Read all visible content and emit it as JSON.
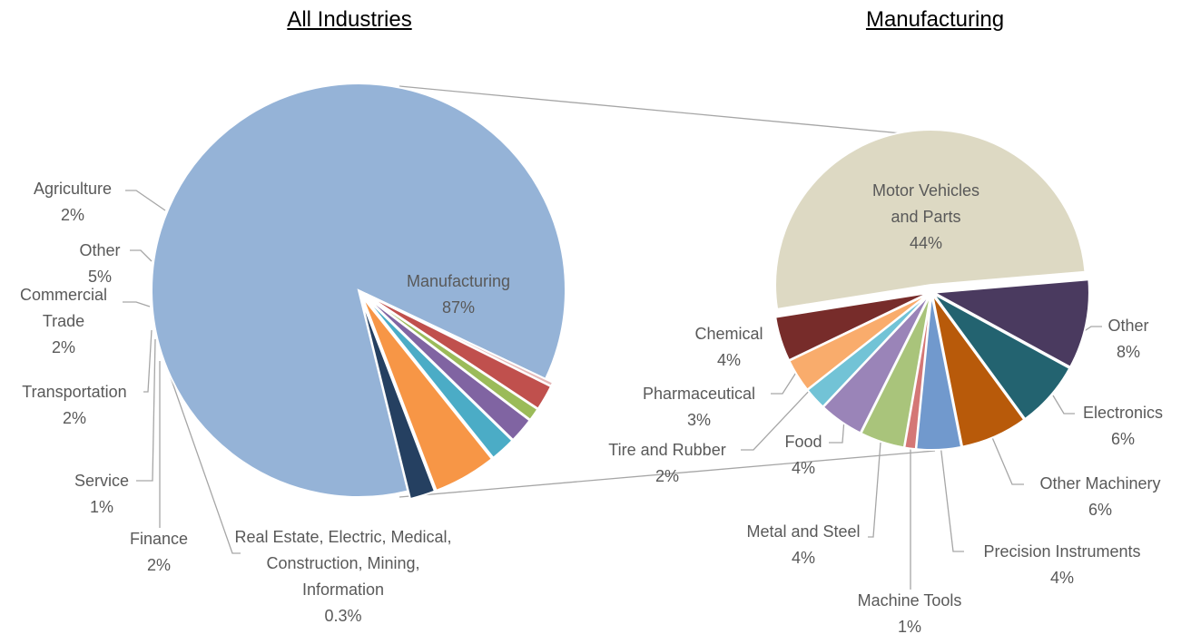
{
  "chart_data": [
    {
      "type": "pie",
      "title": "All Industries",
      "categories": [
        "Manufacturing",
        "Agriculture",
        "Other",
        "Commercial Trade",
        "Transportation",
        "Service",
        "Finance",
        "Real Estate, Electric, Medical, Construction, Mining, Information"
      ],
      "values": [
        87,
        2,
        5,
        2,
        2,
        1,
        2,
        0.3
      ],
      "value_labels": [
        "87%",
        "2%",
        "5%",
        "2%",
        "2%",
        "1%",
        "2%",
        "0.3%"
      ],
      "colors": [
        "#95b3d7",
        "#254061",
        "#f79646",
        "#4bacc6",
        "#8064a2",
        "#9bbb59",
        "#c0504d",
        "#e6b9b8"
      ]
    },
    {
      "type": "pie",
      "title": "Manufacturing",
      "categories": [
        "Motor Vehicles and Parts",
        "Other",
        "Electronics",
        "Other Machinery",
        "Precision Instruments",
        "Machine Tools",
        "Metal and Steel",
        "Food",
        "Tire and Rubber",
        "Pharmaceutical",
        "Chemical"
      ],
      "values": [
        44,
        8,
        6,
        6,
        4,
        1,
        4,
        4,
        2,
        3,
        4
      ],
      "value_labels": [
        "44%",
        "8%",
        "6%",
        "6%",
        "4%",
        "1%",
        "4%",
        "4%",
        "2%",
        "3%",
        "4%"
      ],
      "colors": [
        "#ddd9c3",
        "#4a3a5f",
        "#236370",
        "#b85a0a",
        "#7199cd",
        "#d47776",
        "#a9c47b",
        "#9a84b8",
        "#72c3d6",
        "#f9ac6c",
        "#772c2a"
      ]
    }
  ]
}
